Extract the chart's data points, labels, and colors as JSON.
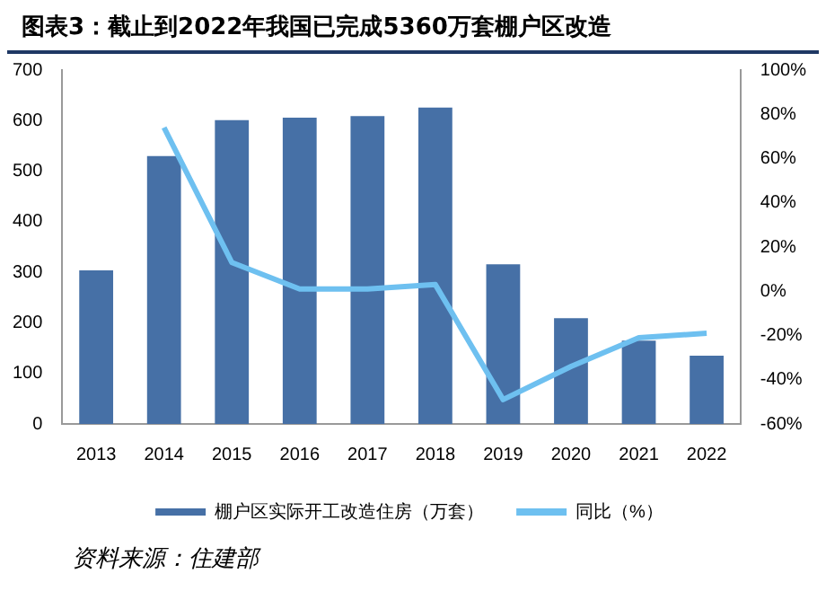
{
  "chart_data": {
    "type": "bar",
    "title": "图表3：截止到2022年我国已完成5360万套棚户区改造",
    "categories": [
      "2013",
      "2014",
      "2015",
      "2016",
      "2017",
      "2018",
      "2019",
      "2020",
      "2021",
      "2022"
    ],
    "series": [
      {
        "name": "棚户区实际开工改造住房（万套）",
        "color": "#4670a6",
        "values": [
          304,
          530,
          601,
          606,
          609,
          626,
          316,
          209,
          165,
          135
        ]
      },
      {
        "name": "同比（%）",
        "type": "line",
        "axis": "y2",
        "color": "#6ec0f0",
        "values": [
          null,
          74,
          13,
          1,
          1,
          3,
          -49,
          -34,
          -21,
          -19
        ]
      }
    ],
    "ylim": [
      0,
      700
    ],
    "yticks": [
      0,
      100,
      200,
      300,
      400,
      500,
      600,
      700
    ],
    "y2lim": [
      -60,
      100
    ],
    "y2ticks": [
      {
        "value": -60,
        "label": "-60%"
      },
      {
        "value": -40,
        "label": "-40%"
      },
      {
        "value": -20,
        "label": "-20%"
      },
      {
        "value": 0,
        "label": "0%"
      },
      {
        "value": 20,
        "label": "20%"
      },
      {
        "value": 40,
        "label": "40%"
      },
      {
        "value": 60,
        "label": "60%"
      },
      {
        "value": 80,
        "label": "80%"
      },
      {
        "value": 100,
        "label": "100%"
      }
    ],
    "grid": false,
    "legend": "bottom",
    "marker": "none",
    "annotations": [
      "资料来源：住建部"
    ]
  }
}
